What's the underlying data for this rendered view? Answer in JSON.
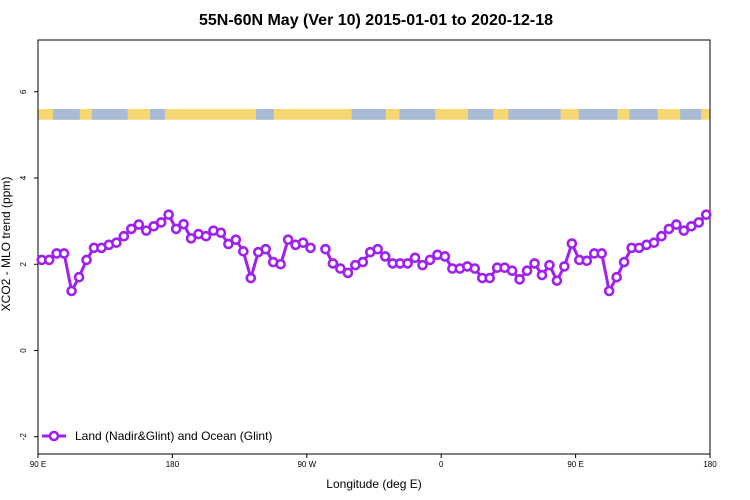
{
  "chart_data": {
    "type": "line",
    "title": "55N-60N May (Ver 10)   2015-01-01 to 2020-12-18",
    "xlabel": "Longitude (deg E)",
    "ylabel": "XCO2 - MLO trend (ppm)",
    "xlim": [
      90,
      540
    ],
    "ylim": [
      -2.4,
      7.2
    ],
    "x_ticks": [
      {
        "value": 90,
        "label": "90 E"
      },
      {
        "value": 180,
        "label": "180"
      },
      {
        "value": 270,
        "label": "90 W"
      },
      {
        "value": 360,
        "label": "0"
      },
      {
        "value": 450,
        "label": "90 E"
      },
      {
        "value": 540,
        "label": "180"
      }
    ],
    "y_ticks": [
      {
        "value": -2,
        "label": "-2"
      },
      {
        "value": 0,
        "label": "0"
      },
      {
        "value": 2,
        "label": "2"
      },
      {
        "value": 4,
        "label": "4"
      },
      {
        "value": 6,
        "label": "6"
      }
    ],
    "legend": {
      "position": "bottom-left",
      "entries": [
        "Land (Nadir&Glint) and Ocean (Glint)"
      ]
    },
    "series": [
      {
        "name": "Land (Nadir&Glint) and Ocean (Glint)",
        "color": "#a020f0",
        "x": [
          92.5,
          97.5,
          102.5,
          107.5,
          112.5,
          117.5,
          122.5,
          127.5,
          132.5,
          137.5,
          142.5,
          147.5,
          152.5,
          157.5,
          162.5,
          167.5,
          172.5,
          177.5,
          182.5,
          187.5,
          192.5,
          197.5,
          202.5,
          207.5,
          212.5,
          217.5,
          222.5,
          227.5,
          232.5,
          237.5,
          242.5,
          247.5,
          252.5,
          257.5,
          262.5,
          267.5,
          272.5,
          277.5,
          null,
          282.5,
          287.5,
          292.5,
          297.5,
          302.5,
          307.5,
          312.5,
          317.5,
          322.5,
          327.5,
          332.5,
          337.5,
          342.5,
          347.5,
          352.5,
          357.5,
          362.5,
          367.5,
          372.5,
          377.5,
          382.5,
          387.5,
          392.5,
          397.5,
          402.5,
          407.5,
          412.5,
          417.5,
          422.5,
          427.5,
          432.5,
          437.5,
          442.5,
          447.5,
          452.5,
          457.5,
          462.5,
          467.5,
          472.5,
          477.5,
          482.5,
          487.5,
          492.5,
          497.5,
          502.5,
          507.5,
          512.5,
          517.5,
          522.5,
          527.5,
          532.5,
          537.5
        ],
        "values": [
          2.1,
          2.1,
          2.25,
          2.25,
          1.38,
          1.7,
          2.1,
          2.38,
          2.38,
          2.45,
          2.5,
          2.65,
          2.82,
          2.92,
          2.78,
          2.88,
          2.97,
          3.15,
          2.82,
          2.93,
          2.6,
          2.7,
          2.65,
          2.78,
          2.73,
          2.47,
          2.57,
          2.3,
          1.68,
          2.28,
          2.35,
          2.05,
          2.0,
          2.57,
          2.45,
          2.5,
          2.38,
          null,
          null,
          2.35,
          2.02,
          1.9,
          1.8,
          1.98,
          2.05,
          2.28,
          2.35,
          2.18,
          2.02,
          2.02,
          2.02,
          2.15,
          1.98,
          2.1,
          2.22,
          2.18,
          1.9,
          1.9,
          1.95,
          1.9,
          1.68,
          1.68,
          1.92,
          1.92,
          1.85,
          1.65,
          1.85,
          2.02,
          1.75,
          1.98,
          1.62,
          1.95,
          2.48,
          2.1,
          2.08,
          2.25,
          2.25,
          1.38,
          1.7,
          2.05,
          2.38,
          2.38,
          2.45,
          2.5,
          2.65,
          2.82,
          2.92,
          2.78,
          2.88,
          2.97,
          3.15
        ]
      }
    ],
    "map_band": {
      "y_range": [
        5.35,
        5.6
      ],
      "ocean_color": "#a9bcd6",
      "land_color": "#f7d774"
    }
  }
}
